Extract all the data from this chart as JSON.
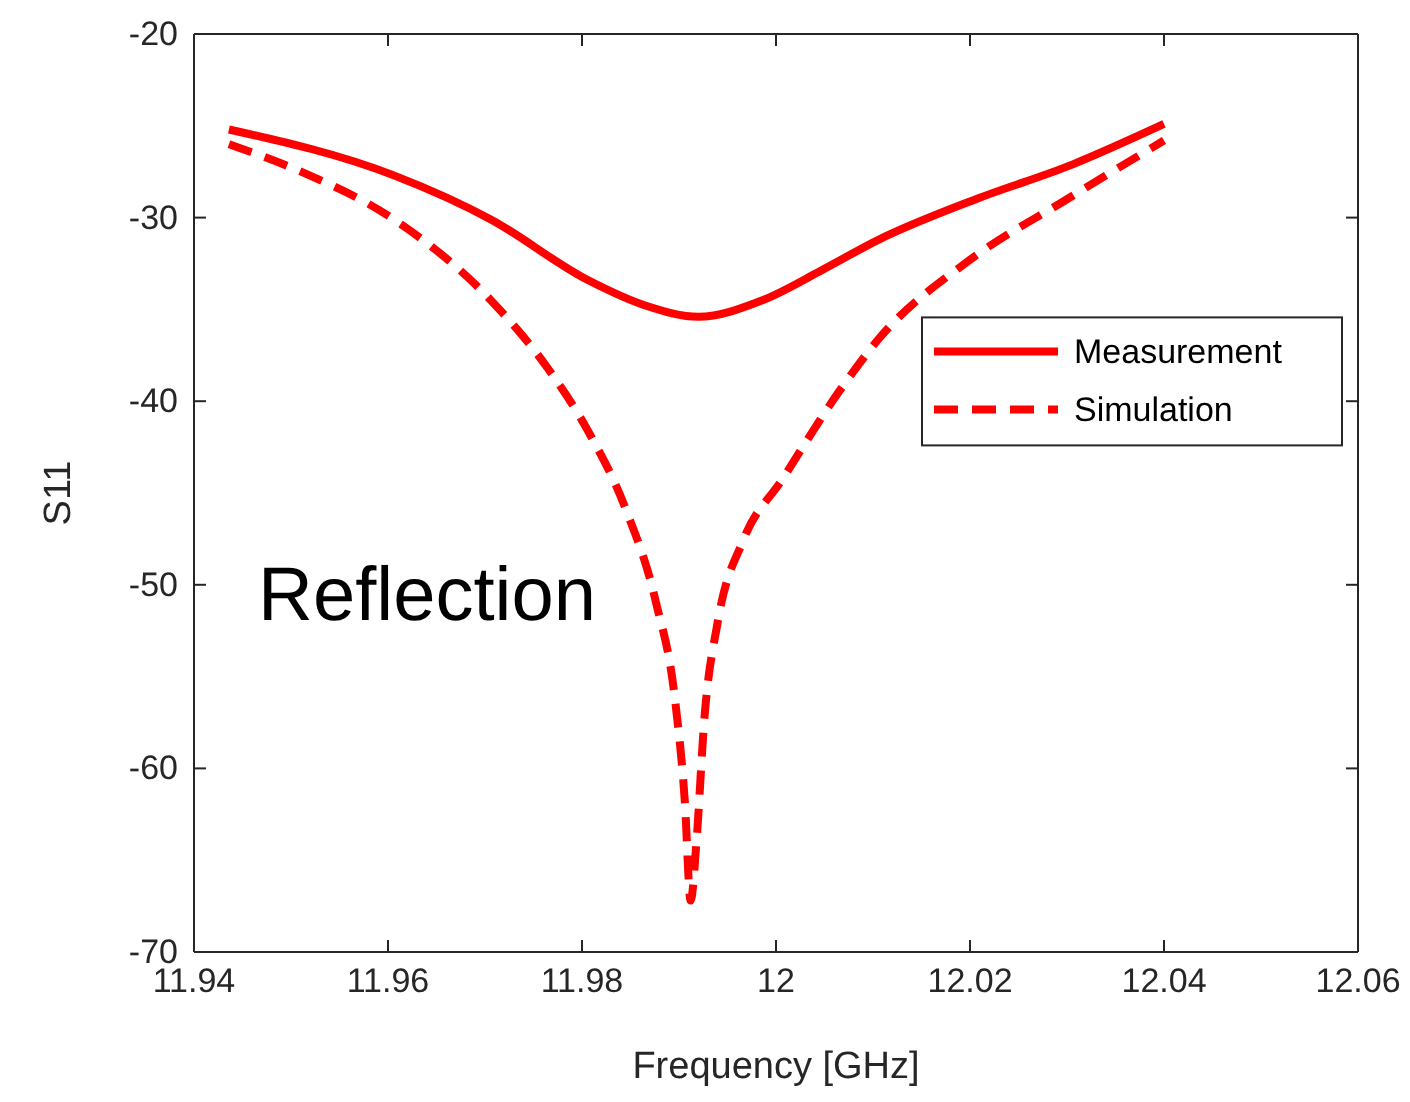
{
  "chart_data": {
    "type": "line",
    "xlabel": "Frequency [GHz]",
    "ylabel": "S11",
    "annotations": [
      "Reflection"
    ],
    "xlim": [
      11.94,
      12.06
    ],
    "xticks": [
      11.94,
      11.96,
      11.98,
      12,
      12.02,
      12.04,
      12.06
    ],
    "ylim": [
      -70,
      -20
    ],
    "yticks": [
      -70,
      -60,
      -50,
      -40,
      -30,
      -20
    ],
    "grid": false,
    "legend": "right",
    "marker": "none",
    "series": [
      {
        "name": "Measurement",
        "color": "#ff0000",
        "line_style": "solid",
        "x": [
          11.9436,
          11.9606,
          11.9706,
          11.9806,
          11.9866,
          11.992,
          11.9986,
          12.0046,
          12.0106,
          12.0206,
          12.0306,
          12.04
        ],
        "values": [
          -25.2,
          -27.7,
          -30.1,
          -33.4,
          -34.8,
          -35.4,
          -34.5,
          -32.9,
          -31.2,
          -29,
          -27.1,
          -24.9
        ]
      },
      {
        "name": "Simulation",
        "color": "#ff0000",
        "line_style": "dashed",
        "x": [
          11.9436,
          11.9506,
          11.9606,
          11.9706,
          11.9766,
          11.9806,
          11.9846,
          11.9876,
          11.9896,
          11.9906,
          11.9912,
          11.9918,
          11.9926,
          11.994,
          11.9966,
          12.0006,
          12.0066,
          12.0106,
          12.02,
          12.03,
          12.04
        ],
        "values": [
          -26,
          -27.4,
          -30.1,
          -34.5,
          -38.3,
          -41.6,
          -46,
          -50.9,
          -56.3,
          -61.8,
          -67.2,
          -64,
          -57.4,
          -52,
          -47.6,
          -44.3,
          -39.4,
          -36.6,
          -32.3,
          -29,
          -25.8
        ]
      }
    ]
  }
}
